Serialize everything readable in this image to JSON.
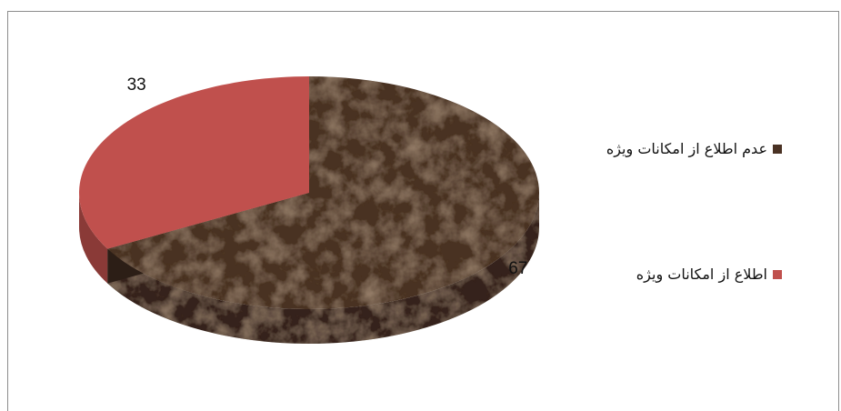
{
  "chart_data": {
    "type": "pie",
    "categories": [
      "عدم اطلاع از امکانات ویژه",
      "اطلاع از امکانات ویژه"
    ],
    "values": [
      67,
      33
    ],
    "data_labels": [
      "67",
      "33"
    ],
    "colors": [
      "#4a3224",
      "#c0504d"
    ],
    "legend_position": "right",
    "style": "3d"
  }
}
